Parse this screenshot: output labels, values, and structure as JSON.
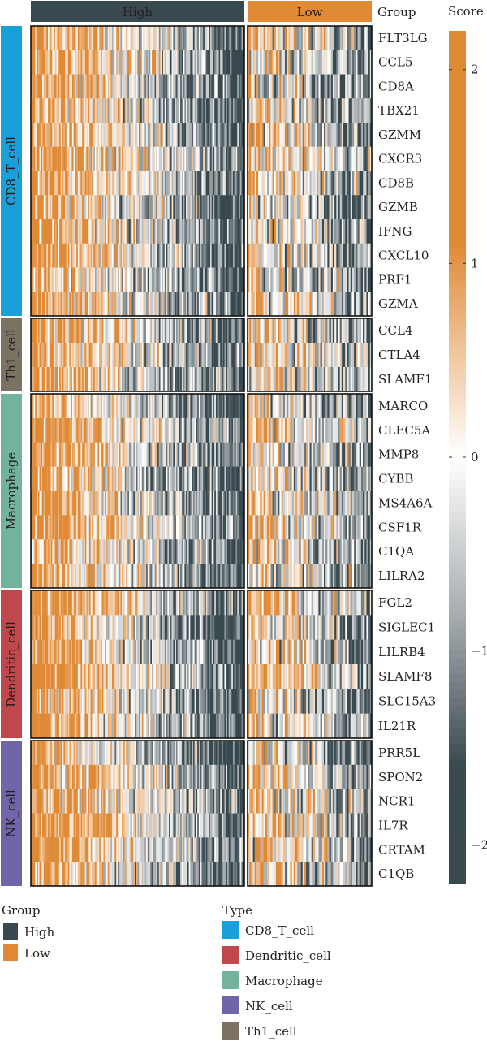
{
  "chart_data": {
    "type": "heatmap",
    "group_header": {
      "label": "Group",
      "groups": [
        "High",
        "Low"
      ],
      "high_fraction": 0.7
    },
    "score_legend": {
      "label": "Score",
      "ticks": [
        2,
        1,
        0,
        -1,
        -2
      ],
      "range": [
        -2.2,
        2.2
      ]
    },
    "colors": {
      "high": "#e08a36",
      "mid": "#ffffff",
      "low": "#38494f",
      "neutral_low": "#9ea5a8"
    },
    "cell_types": [
      {
        "name": "CD8_T_cell",
        "color": "#1aa0d8",
        "genes": [
          "FLT3LG",
          "CCL5",
          "CD8A",
          "TBX21",
          "GZMM",
          "CXCR3",
          "CD8B",
          "GZMB",
          "IFNG",
          "CXCL10",
          "PRF1",
          "GZMA"
        ]
      },
      {
        "name": "Th1_cell",
        "color": "#7b7264",
        "genes": [
          "CCL4",
          "CTLA4",
          "SLAMF1"
        ]
      },
      {
        "name": "Macrophage",
        "color": "#73b39b",
        "genes": [
          "MARCO",
          "CLEC5A",
          "MMP8",
          "CYBB",
          "MS4A6A",
          "CSF1R",
          "C1QA",
          "LILRA2"
        ]
      },
      {
        "name": "Dendritic_cell",
        "color": "#c0474b",
        "genes": [
          "FGL2",
          "SIGLEC1",
          "LILRB4",
          "SLAMF8",
          "SLC15A3",
          "IL21R"
        ]
      },
      {
        "name": "NK_cell",
        "color": "#7264a8",
        "genes": [
          "PRR5L",
          "SPON2",
          "NCR1",
          "IL7R",
          "CRTAM",
          "C1QB"
        ]
      }
    ],
    "legend_group": {
      "title": "Group",
      "items": [
        {
          "label": "High",
          "color": "#38494f"
        },
        {
          "label": "Low",
          "color": "#e08a36"
        }
      ]
    },
    "legend_type": {
      "title": "Type",
      "items": [
        {
          "label": "CD8_T_cell",
          "color": "#1aa0d8"
        },
        {
          "label": "Dendritic_cell",
          "color": "#c0474b"
        },
        {
          "label": "Macrophage",
          "color": "#73b39b"
        },
        {
          "label": "NK_cell",
          "color": "#7264a8"
        },
        {
          "label": "Th1_cell",
          "color": "#7b7264"
        }
      ]
    }
  }
}
